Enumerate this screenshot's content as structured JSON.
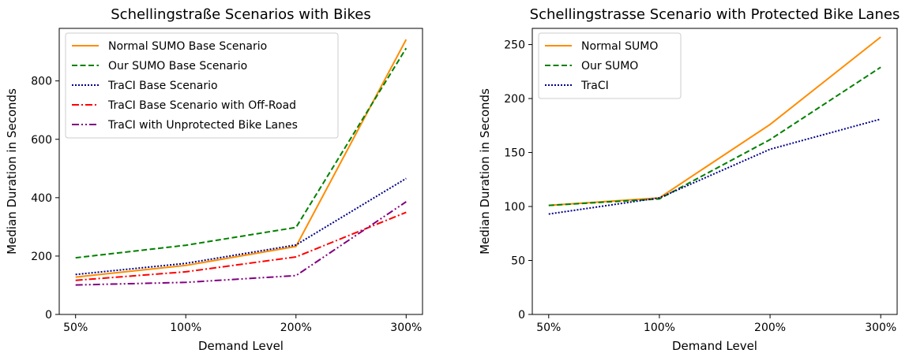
{
  "chart_data": [
    {
      "type": "line",
      "title": "Schellingstraße Scenarios with Bikes",
      "xlabel": "Demand Level",
      "ylabel": "Median Duration in Seconds",
      "categories": [
        "50%",
        "100%",
        "200%",
        "300%"
      ],
      "ylim": [
        0,
        980
      ],
      "yticks": [
        0,
        200,
        400,
        600,
        800
      ],
      "grid": false,
      "legend": "top-left",
      "series": [
        {
          "name": "Normal SUMO Base Scenario",
          "values": [
            128,
            168,
            233,
            942
          ],
          "color": "#ff8c00",
          "dash": "solid"
        },
        {
          "name": "Our SUMO Base Scenario",
          "values": [
            194,
            237,
            298,
            912
          ],
          "color": "#008000",
          "dash": "dashed"
        },
        {
          "name": "TraCI Base Scenario",
          "values": [
            137,
            175,
            238,
            466
          ],
          "color": "#00008b",
          "dash": "dotted"
        },
        {
          "name": "TraCI Base Scenario with Off-Road",
          "values": [
            117,
            146,
            197,
            350
          ],
          "color": "#ff0000",
          "dash": "dashdot"
        },
        {
          "name": "TraCI with Unprotected Bike Lanes",
          "values": [
            101,
            110,
            133,
            386
          ],
          "color": "#800080",
          "dash": "dashdotdot"
        }
      ]
    },
    {
      "type": "line",
      "title": "Schellingstrasse Scenario with Protected Bike Lanes",
      "xlabel": "Demand Level",
      "ylabel": "Median Duration in Seconds",
      "categories": [
        "50%",
        "100%",
        "200%",
        "300%"
      ],
      "ylim": [
        0,
        265
      ],
      "yticks": [
        0,
        50,
        100,
        150,
        200,
        250
      ],
      "grid": false,
      "legend": "top-left",
      "series": [
        {
          "name": "Normal SUMO",
          "values": [
            101,
            108,
            176,
            257
          ],
          "color": "#ff8c00",
          "dash": "solid"
        },
        {
          "name": "Our SUMO",
          "values": [
            101,
            107,
            162,
            229
          ],
          "color": "#008000",
          "dash": "dashed"
        },
        {
          "name": "TraCI",
          "values": [
            93,
            108,
            153,
            181
          ],
          "color": "#00008b",
          "dash": "dotted"
        }
      ]
    }
  ]
}
